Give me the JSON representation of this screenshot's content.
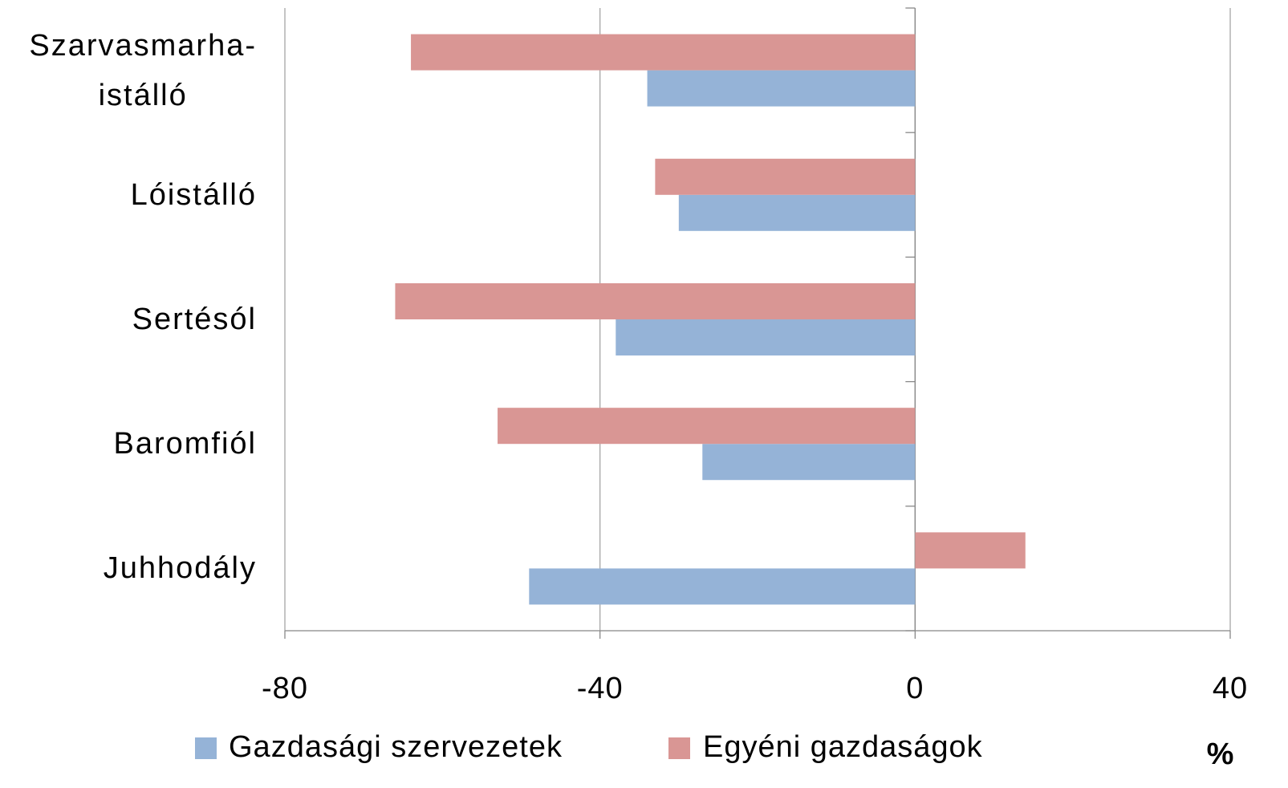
{
  "chart_data": {
    "type": "hbar",
    "categories": [
      "Szarvasmarha-\nistálló",
      "Lóistálló",
      "Sertésól",
      "Baromfiól",
      "Juhhodály"
    ],
    "series": [
      {
        "name": "Gazdasági szervezetek",
        "color": "#95b3d7",
        "values": [
          -34,
          -30,
          -38,
          -27,
          -49
        ]
      },
      {
        "name": "Egyéni gazdaságok",
        "color": "#d99694",
        "values": [
          -64,
          -33,
          -66,
          -53,
          14
        ]
      }
    ],
    "xlim": [
      -80,
      40
    ],
    "xticks": [
      -80,
      -40,
      0,
      40
    ],
    "grid": true,
    "x_label": "%"
  }
}
